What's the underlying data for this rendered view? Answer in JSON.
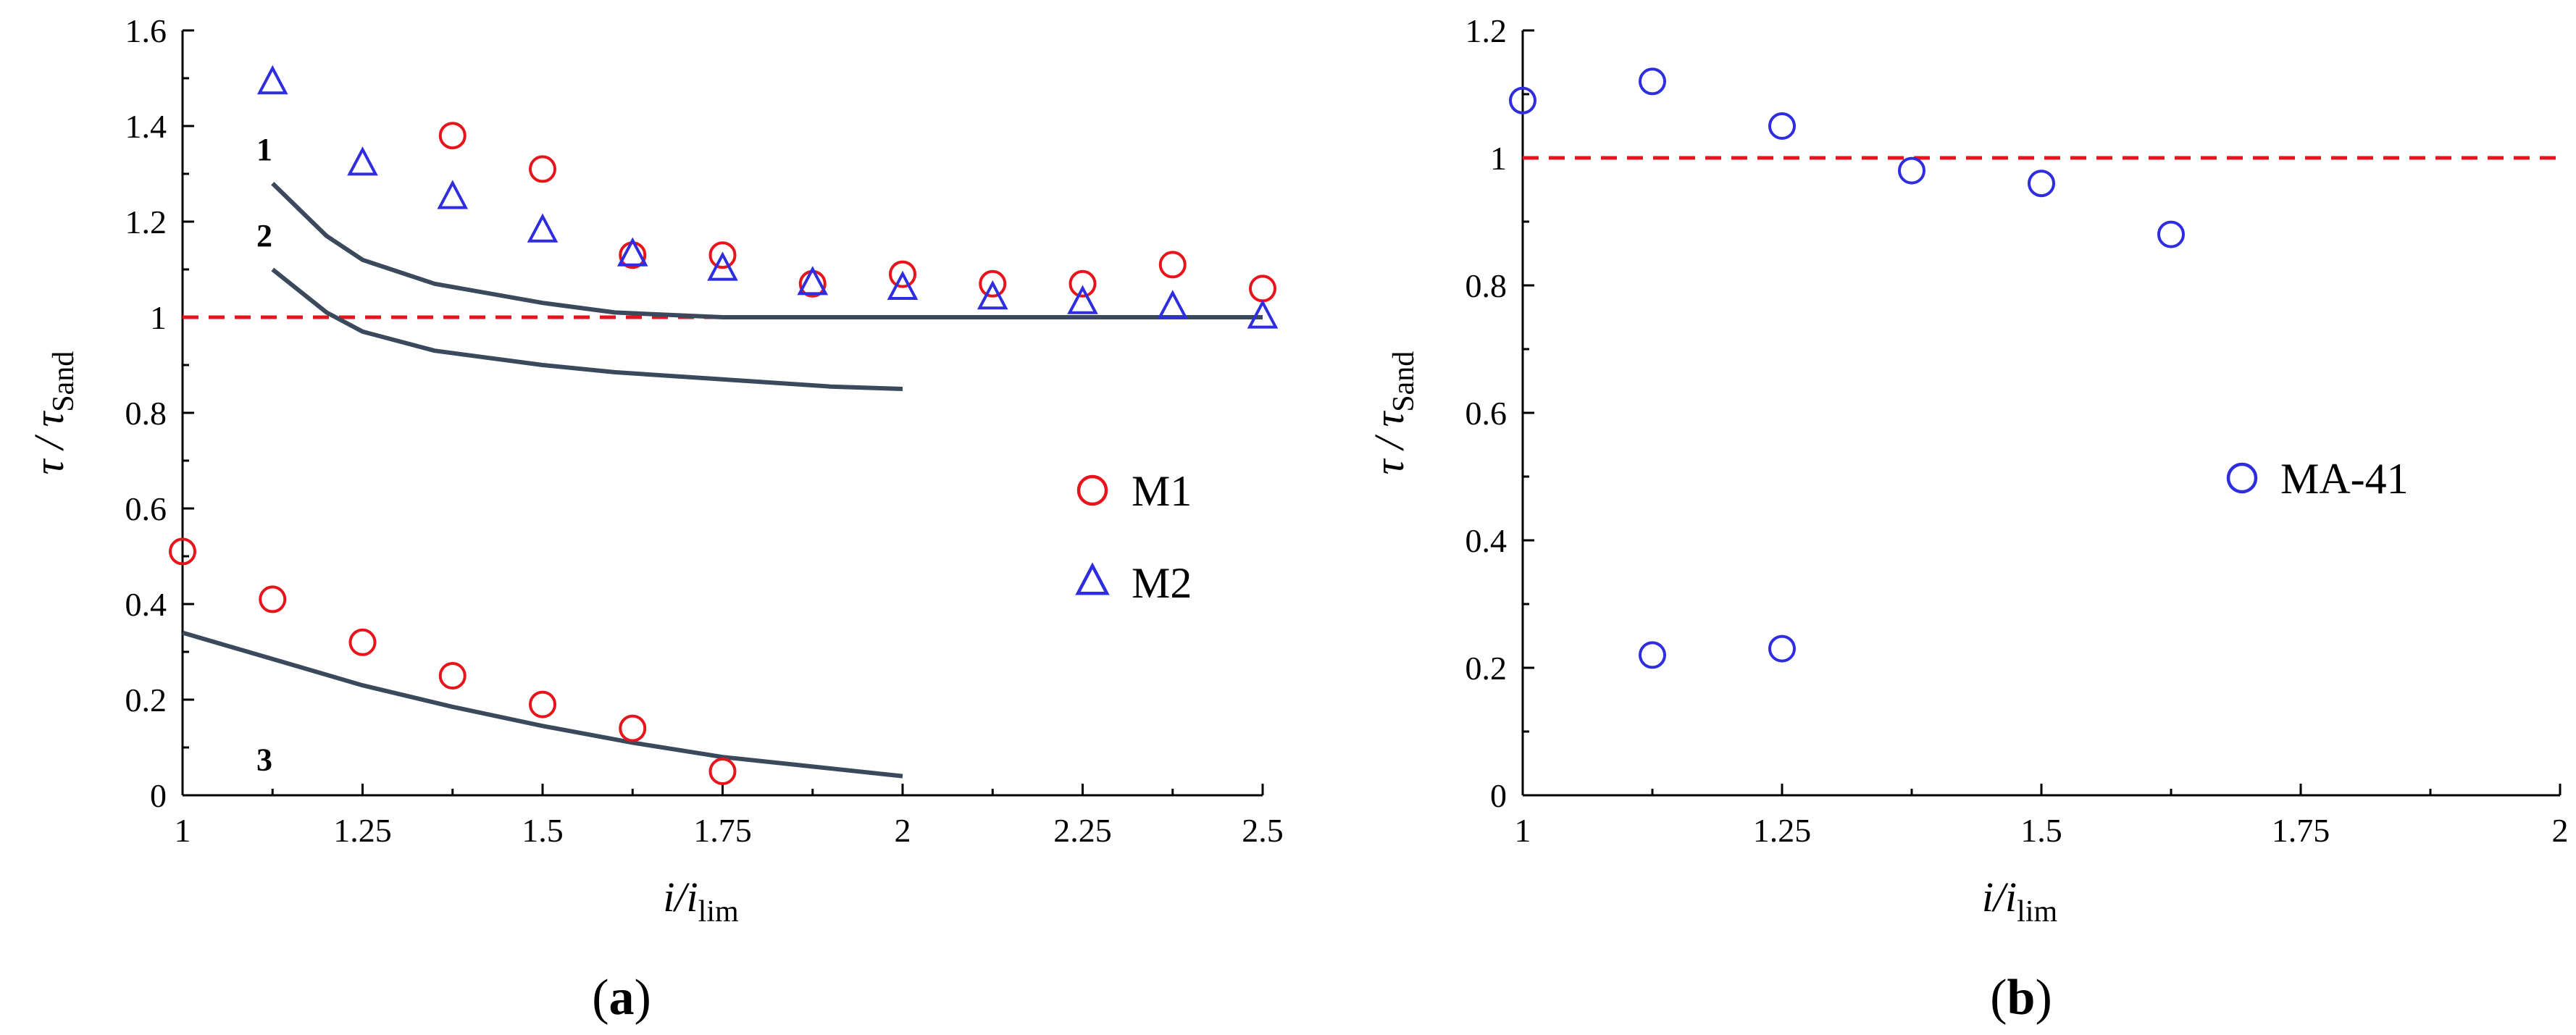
{
  "chart_data": [
    {
      "type": "scatter",
      "panel_label": "a",
      "xlabel": "i/i",
      "xlabel_sub": "lim",
      "ylabel": "τ / τ",
      "ylabel_sub": "Sand",
      "xlim": [
        1,
        2.5
      ],
      "ylim": [
        0,
        1.6
      ],
      "xticks": [
        "1",
        "1.25",
        "1.5",
        "1.75",
        "2",
        "2.25",
        "2.5"
      ],
      "yticks": [
        "0",
        "0.2",
        "0.4",
        "0.6",
        "0.8",
        "1",
        "1.2",
        "1.4",
        "1.6"
      ],
      "reference_line": {
        "y": 1,
        "color": "#e8141b",
        "style": "dashed"
      },
      "series": [
        {
          "name": "M1",
          "marker": "circle",
          "color": "#e8141b",
          "points": [
            [
              1.0,
              0.51
            ],
            [
              1.125,
              0.41
            ],
            [
              1.25,
              0.32
            ],
            [
              1.375,
              0.25
            ],
            [
              1.5,
              0.19
            ],
            [
              1.625,
              0.14
            ],
            [
              1.75,
              0.05
            ],
            [
              1.375,
              1.38
            ],
            [
              1.5,
              1.31
            ],
            [
              1.625,
              1.13
            ],
            [
              1.75,
              1.13
            ],
            [
              1.875,
              1.07
            ],
            [
              2.0,
              1.09
            ],
            [
              2.125,
              1.07
            ],
            [
              2.25,
              1.07
            ],
            [
              2.375,
              1.11
            ],
            [
              2.5,
              1.06
            ]
          ]
        },
        {
          "name": "M2",
          "marker": "triangle",
          "color": "#2e2ee0",
          "points": [
            [
              1.125,
              1.49
            ],
            [
              1.25,
              1.32
            ],
            [
              1.375,
              1.25
            ],
            [
              1.5,
              1.18
            ],
            [
              1.625,
              1.13
            ],
            [
              1.75,
              1.1
            ],
            [
              1.875,
              1.07
            ],
            [
              2.0,
              1.06
            ],
            [
              2.125,
              1.04
            ],
            [
              2.25,
              1.03
            ],
            [
              2.375,
              1.02
            ],
            [
              2.5,
              1.0
            ]
          ]
        }
      ],
      "curves": [
        {
          "label": "1",
          "color": "#3a4a5c",
          "points": [
            [
              1.125,
              1.28
            ],
            [
              1.2,
              1.17
            ],
            [
              1.25,
              1.12
            ],
            [
              1.35,
              1.07
            ],
            [
              1.5,
              1.03
            ],
            [
              1.6,
              1.01
            ],
            [
              1.75,
              1.0
            ],
            [
              2.0,
              1.0
            ],
            [
              2.5,
              1.0
            ]
          ]
        },
        {
          "label": "2",
          "color": "#3a4a5c",
          "points": [
            [
              1.125,
              1.1
            ],
            [
              1.2,
              1.01
            ],
            [
              1.25,
              0.97
            ],
            [
              1.35,
              0.93
            ],
            [
              1.5,
              0.9
            ],
            [
              1.6,
              0.885
            ],
            [
              1.75,
              0.87
            ],
            [
              1.9,
              0.855
            ],
            [
              2.0,
              0.85
            ]
          ]
        },
        {
          "label": "3",
          "color": "#3a4a5c",
          "points": [
            [
              1.0,
              0.34
            ],
            [
              1.125,
              0.285
            ],
            [
              1.25,
              0.23
            ],
            [
              1.375,
              0.185
            ],
            [
              1.5,
              0.145
            ],
            [
              1.625,
              0.11
            ],
            [
              1.75,
              0.08
            ],
            [
              1.875,
              0.06
            ],
            [
              2.0,
              0.04
            ]
          ]
        }
      ],
      "legend": {
        "placement": "center-right",
        "entries": [
          "M1",
          "M2"
        ]
      }
    },
    {
      "type": "scatter",
      "panel_label": "b",
      "xlabel": "i/i",
      "xlabel_sub": "lim",
      "ylabel": "τ / τ",
      "ylabel_sub": "Sand",
      "xlim": [
        1,
        2
      ],
      "ylim": [
        0,
        1.2
      ],
      "xticks": [
        "1",
        "1.25",
        "1.5",
        "1.75",
        "2"
      ],
      "yticks": [
        "0",
        "0.2",
        "0.4",
        "0.6",
        "0.8",
        "1",
        "1.2"
      ],
      "reference_line": {
        "y": 1,
        "color": "#e8141b",
        "style": "dashed"
      },
      "series": [
        {
          "name": "MA-41",
          "marker": "circle",
          "color": "#2e2ee0",
          "points": [
            [
              1.0,
              1.09
            ],
            [
              1.125,
              1.12
            ],
            [
              1.125,
              0.22
            ],
            [
              1.25,
              1.05
            ],
            [
              1.25,
              0.23
            ],
            [
              1.375,
              0.98
            ],
            [
              1.5,
              0.96
            ],
            [
              1.625,
              0.88
            ]
          ]
        }
      ],
      "curves": [],
      "legend": {
        "placement": "center-right",
        "entries": [
          "MA-41"
        ]
      }
    }
  ]
}
